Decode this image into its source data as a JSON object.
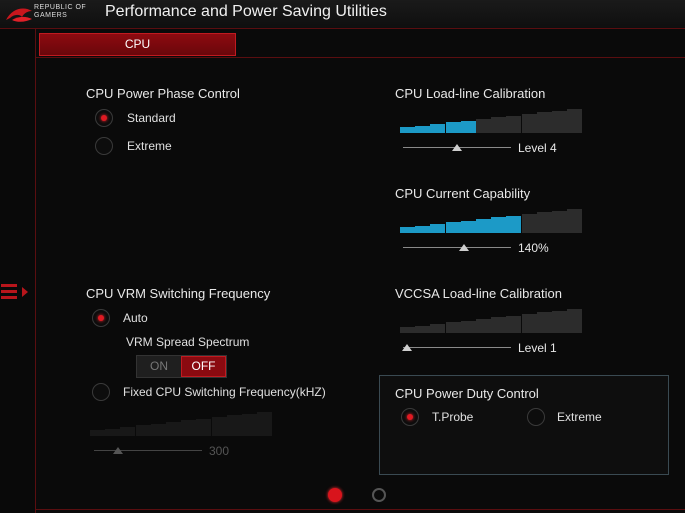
{
  "titlebar": {
    "brand_line1": "REPUBLIC OF",
    "brand_line2": "GAMERS",
    "title": "Performance and Power Saving Utilities",
    "logo_icon": "rog-eye-icon"
  },
  "tabs": [
    {
      "label": "CPU",
      "active": true
    }
  ],
  "colors": {
    "accent_red": "#c01a20",
    "meter_active": "#1c9ac7",
    "meter_inactive": "#2c2c2c"
  },
  "power_phase": {
    "label": "CPU Power Phase Control",
    "options": [
      {
        "label": "Standard",
        "selected": true
      },
      {
        "label": "Extreme",
        "selected": false
      }
    ]
  },
  "llc": {
    "label": "CPU Load-line Calibration",
    "value": "Level 4",
    "level": 5,
    "segments": 12
  },
  "current_capability": {
    "label": "CPU Current Capability",
    "value": "140%",
    "level": 8,
    "segments": 12
  },
  "vrm": {
    "label": "CPU VRM Switching Frequency",
    "auto_label": "Auto",
    "auto_selected": true,
    "spread_label": "VRM Spread Spectrum",
    "toggle_on": "ON",
    "toggle_off": "OFF",
    "toggle_state": "OFF",
    "fixed_label": "Fixed CPU Switching Frequency(kHZ)",
    "fixed_selected": false,
    "fixed_value": "300",
    "fixed_segments": 12
  },
  "vccsa": {
    "label": "VCCSA Load-line Calibration",
    "value": "Level 1",
    "level": 0,
    "segments": 12
  },
  "duty": {
    "label": "CPU Power Duty Control",
    "options": [
      {
        "label": "T.Probe",
        "selected": true
      },
      {
        "label": "Extreme",
        "selected": false
      }
    ]
  },
  "pagination": {
    "pages": 2,
    "current": 1
  }
}
